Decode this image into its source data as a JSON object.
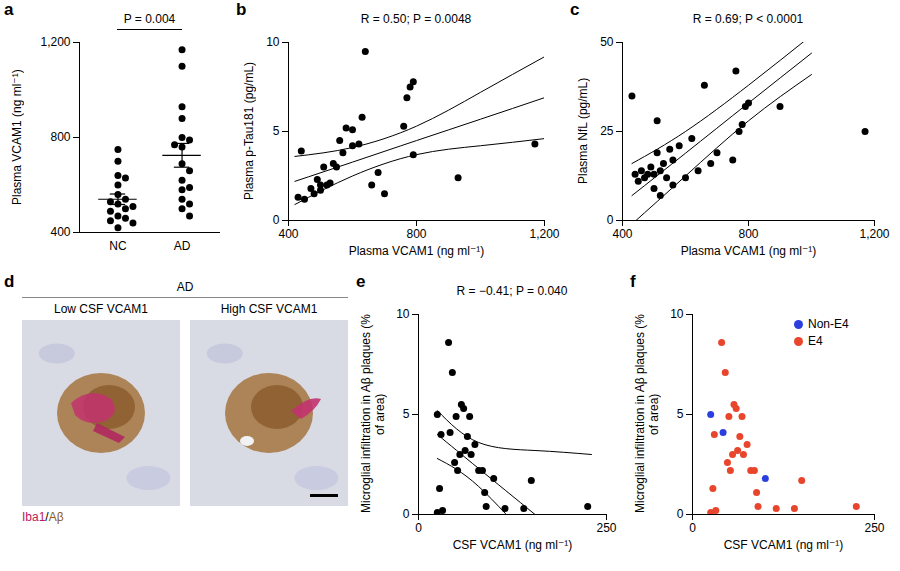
{
  "chart_data": [
    {
      "panel": "a",
      "type": "strip",
      "categories": [
        "NC",
        "AD"
      ],
      "values": [
        [
          750,
          700,
          640,
          630,
          600,
          560,
          540,
          530,
          520,
          510,
          500,
          490,
          470,
          460,
          450,
          440,
          420
        ],
        [
          1170,
          1100,
          930,
          880,
          800,
          790,
          770,
          760,
          690,
          660,
          620,
          590,
          580,
          540,
          520,
          500,
          470
        ]
      ],
      "mean": [
        540,
        725
      ],
      "sem": [
        22,
        50
      ],
      "ylabel": "Plasma VCAM1 (ng ml⁻¹)",
      "ylim": [
        400,
        1200
      ],
      "yticks": [
        400,
        800,
        {
          "value": 1200,
          "label": "1,200"
        }
      ],
      "annotations": [
        "P = 0.004"
      ],
      "color": "#000000"
    },
    {
      "panel": "b",
      "type": "scatter",
      "x": [
        430,
        440,
        450,
        470,
        480,
        490,
        500,
        500,
        510,
        520,
        530,
        540,
        550,
        560,
        570,
        580,
        600,
        600,
        620,
        630,
        640,
        660,
        680,
        700,
        760,
        770,
        780,
        790,
        790,
        930,
        1170
      ],
      "y": [
        1.3,
        3.9,
        1.2,
        1.8,
        1.5,
        2.3,
        2.0,
        1.7,
        3.0,
        2.0,
        2.1,
        3.2,
        3.0,
        4.5,
        3.8,
        5.2,
        5.1,
        4.2,
        4.3,
        5.8,
        9.5,
        2.0,
        2.7,
        1.5,
        5.3,
        6.9,
        7.5,
        7.8,
        3.7,
        2.4,
        4.3
      ],
      "fit": {
        "x": [
          420,
          600,
          800,
          1000,
          1200
        ],
        "y": [
          2.2,
          3.28,
          4.49,
          5.69,
          6.9
        ],
        "lower": [
          0.9,
          2.5,
          3.7,
          4.2,
          4.6
        ],
        "upper": [
          3.6,
          4.1,
          5.3,
          7.2,
          9.2
        ]
      },
      "xlabel": "Plasma VCAM1 (ng ml⁻¹)",
      "ylabel": "Plasma p-Tau181 (pg/mL)",
      "xlim": [
        400,
        1200
      ],
      "xticks": [
        400,
        800,
        {
          "value": 1200,
          "label": "1,200"
        }
      ],
      "ylim": [
        0,
        10
      ],
      "yticks": [
        0,
        5,
        10
      ],
      "annotations": [
        "R = 0.50; P = 0.0048"
      ],
      "color": "#000000"
    },
    {
      "panel": "c",
      "type": "scatter",
      "x": [
        430,
        440,
        450,
        460,
        470,
        480,
        490,
        500,
        500,
        510,
        510,
        520,
        520,
        530,
        540,
        550,
        560,
        560,
        580,
        600,
        620,
        640,
        660,
        680,
        700,
        750,
        760,
        770,
        780,
        790,
        800,
        900,
        1170
      ],
      "y": [
        35,
        13,
        11,
        14,
        12,
        13,
        15,
        9,
        13,
        28,
        19,
        7,
        14,
        16,
        12,
        20,
        10,
        17,
        21,
        12,
        23,
        14,
        38,
        16,
        19,
        17,
        42,
        25,
        27,
        32,
        33,
        32,
        25
      ],
      "fit": {
        "x": [
          430,
          600,
          800,
          1000
        ],
        "y": [
          7,
          18.9,
          33,
          47
        ],
        "lower": [
          -1,
          12.5,
          28,
          41
        ],
        "upper": [
          16,
          25,
          38,
          52
        ]
      },
      "xlabel": "Plasma VCAM1 (ng ml⁻¹)",
      "ylabel": "Plasma NfL (pg/mL)",
      "xlim": [
        400,
        1200
      ],
      "xticks": [
        400,
        800,
        {
          "value": 1200,
          "label": "1,200"
        }
      ],
      "ylim": [
        0,
        50
      ],
      "yticks": [
        0,
        25,
        50
      ],
      "annotations": [
        "R = 0.69; P < 0.0001"
      ],
      "color": "#000000"
    },
    {
      "panel": "d",
      "type": "image",
      "title": "AD",
      "images": [
        "Low CSF VCAM1",
        "High CSF VCAM1"
      ],
      "caption": "Iba1/Aβ"
    },
    {
      "panel": "e",
      "type": "scatter",
      "x": [
        25,
        25,
        28,
        30,
        32,
        40,
        42,
        45,
        48,
        50,
        52,
        55,
        57,
        60,
        62,
        65,
        68,
        70,
        75,
        80,
        85,
        88,
        90,
        100,
        115,
        140,
        150,
        225
      ],
      "y": [
        5.0,
        0.1,
        1.3,
        4.0,
        0.2,
        8.6,
        4.1,
        7.1,
        2.6,
        4.9,
        2.2,
        3.0,
        5.5,
        5.3,
        3.2,
        3.9,
        4.9,
        3.0,
        3.5,
        2.2,
        2.2,
        1.1,
        0.4,
        1.8,
        0.3,
        0.3,
        1.7,
        0.4
      ],
      "fit": {
        "x": [
          25,
          80,
          155,
          230
        ],
        "y": [
          4.0,
          2.3,
          0.0,
          -2.3
        ],
        "lower": [
          2.8,
          1.4,
          -1.5,
          -4.0
        ],
        "upper": [
          5.2,
          3.6,
          3.2,
          3.0
        ]
      },
      "xlabel": "CSF VCAM1 (ng ml⁻¹)",
      "ylabel": "Microglial infiltration in Aβ plaques (% of area)",
      "xlim": [
        0,
        250
      ],
      "xticks": [
        0,
        250
      ],
      "ylim": [
        0,
        10
      ],
      "yticks": [
        0,
        5,
        10
      ],
      "annotations": [
        "R = −0.41; P = 0.040"
      ],
      "color": "#000000"
    },
    {
      "panel": "f",
      "type": "scatter",
      "series": [
        {
          "name": "Non-E4",
          "color": "#2b3fe0",
          "x": [
            25,
            42,
            100
          ],
          "y": [
            5.0,
            4.1,
            1.8
          ]
        },
        {
          "name": "E4",
          "color": "#e8452c",
          "x": [
            25,
            28,
            30,
            32,
            40,
            45,
            48,
            50,
            52,
            55,
            57,
            60,
            62,
            65,
            68,
            70,
            75,
            80,
            85,
            88,
            90,
            115,
            140,
            150,
            225
          ],
          "y": [
            0.1,
            1.3,
            4.0,
            0.2,
            8.6,
            7.1,
            2.6,
            4.9,
            2.2,
            3.0,
            5.5,
            5.3,
            3.2,
            3.9,
            4.9,
            3.0,
            3.5,
            2.2,
            2.2,
            1.1,
            0.4,
            0.3,
            0.3,
            1.7,
            0.4
          ]
        }
      ],
      "xlabel": "CSF VCAM1 (ng ml⁻¹)",
      "ylabel": "Microglial infiltration in Aβ plaques (% of area)",
      "xlim": [
        0,
        250
      ],
      "xticks": [
        0,
        250
      ],
      "ylim": [
        0,
        10
      ],
      "yticks": [
        0,
        5,
        10
      ],
      "legend": "top-right"
    }
  ]
}
